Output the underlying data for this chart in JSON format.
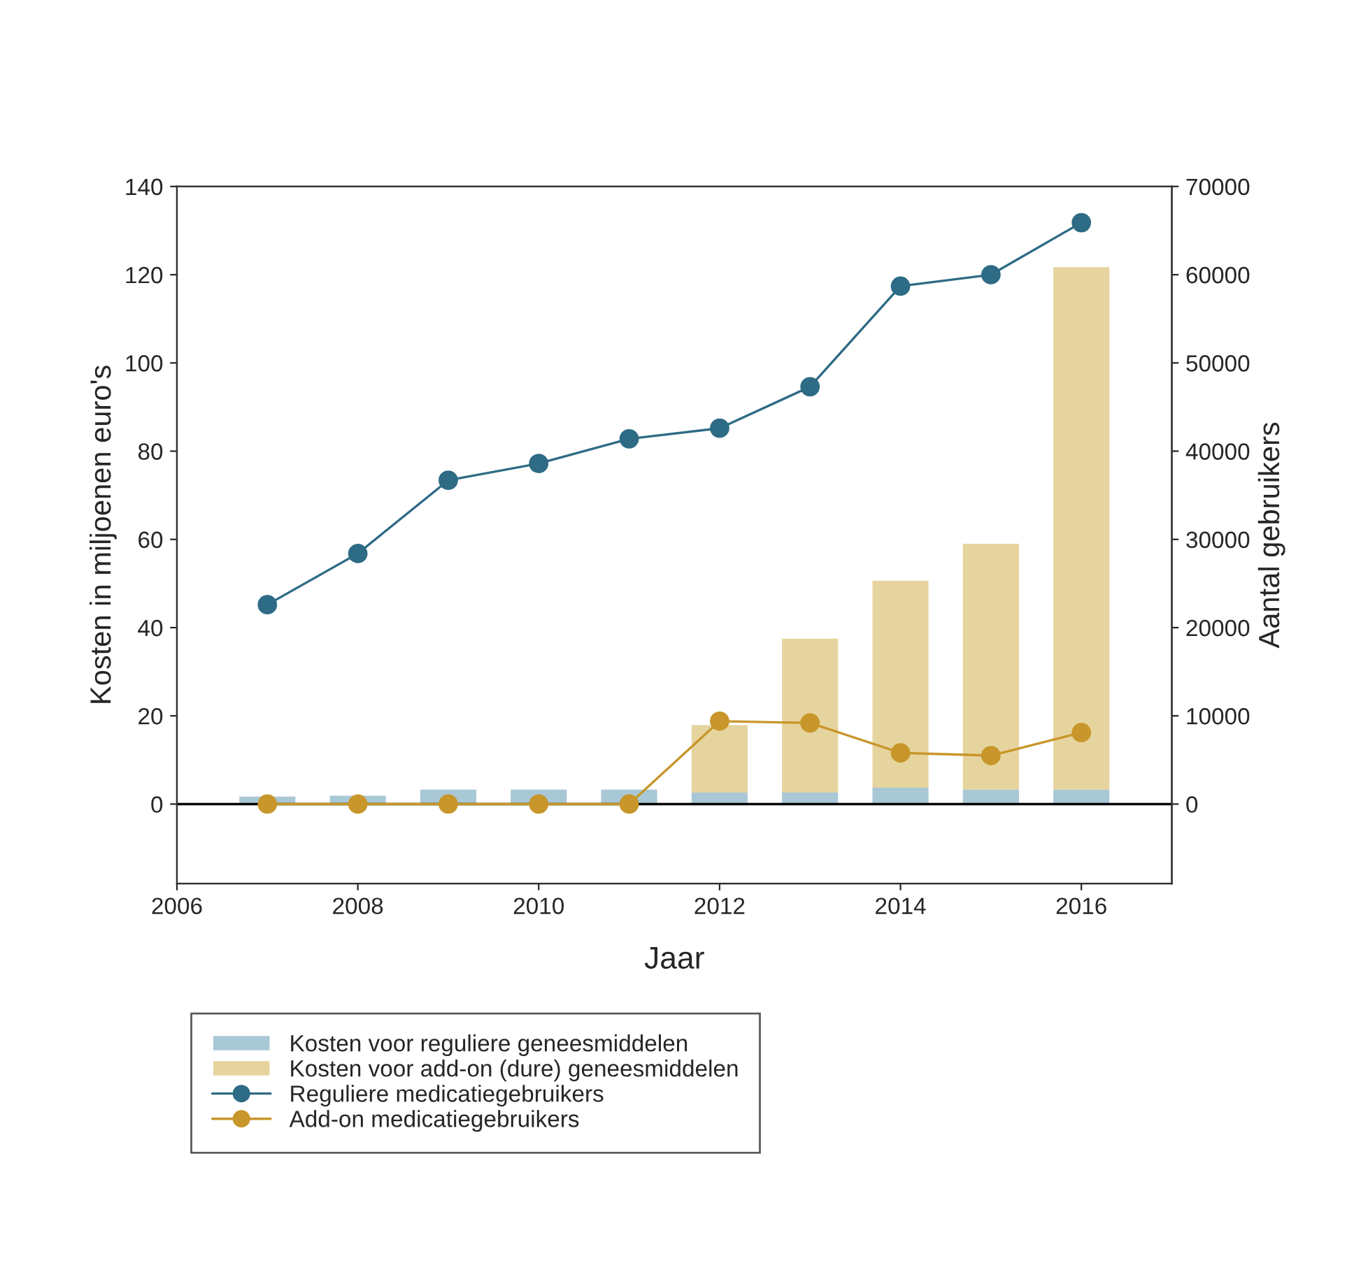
{
  "chart_data": {
    "type": "bar",
    "stacked": true,
    "xlabel": "Jaar",
    "ylabel": "Kosten in miljoenen euro's",
    "y2label": "Aantal gebruikers",
    "x": [
      2007,
      2008,
      2009,
      2010,
      2011,
      2012,
      2013,
      2014,
      2015,
      2016
    ],
    "series": [
      {
        "name": "Kosten voor reguliere geneesmiddelen",
        "color": "#a9c8d6",
        "values": [
          1.7,
          1.9,
          3.3,
          3.3,
          3.3,
          2.6,
          2.6,
          3.7,
          3.3,
          3.3
        ]
      },
      {
        "name": "Kosten voor add-on (dure) geneesmiddelen",
        "color": "#e6d49e",
        "values": [
          0,
          0,
          0,
          0,
          0,
          15.3,
          34.9,
          46.9,
          55.7,
          118.4
        ]
      },
      {
        "name": "Reguliere medicatiegebruikers",
        "type": "line",
        "axis": "y2",
        "marker": "circle",
        "color": "#2e6b85",
        "values": [
          22600,
          28400,
          36700,
          38600,
          41400,
          42600,
          47300,
          58700,
          60000,
          65900
        ]
      },
      {
        "name": "Add-on medicatiegebruikers",
        "type": "line",
        "axis": "y2",
        "marker": "circle",
        "color": "#c8962a",
        "values": [
          0,
          0,
          0,
          0,
          0,
          9400,
          9200,
          5800,
          5500,
          8100
        ]
      }
    ],
    "xlim": [
      2006,
      2017
    ],
    "xticks": [
      2006,
      2008,
      2010,
      2012,
      2014,
      2016
    ],
    "ylim": [
      -18,
      140
    ],
    "yticks": [
      0,
      20,
      40,
      60,
      80,
      100,
      120,
      140
    ],
    "y2lim": [
      -9000,
      70000
    ],
    "y2ticks": [
      0,
      10000,
      20000,
      30000,
      40000,
      50000,
      60000,
      70000
    ],
    "ref_lines": [
      {
        "axis": "y",
        "value": 0,
        "color": "#000000"
      }
    ],
    "grid": false,
    "legend": "bottom"
  }
}
